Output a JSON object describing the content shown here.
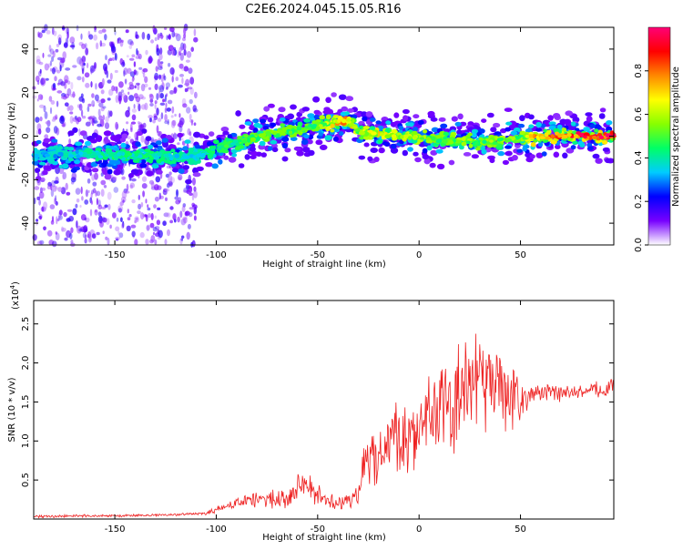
{
  "title": "C2E6.2024.045.15.05.R16",
  "chart_data": [
    {
      "type": "heatmap",
      "title": "C2E6.2024.045.15.05.R16",
      "xlabel": "Height of straight line (km)",
      "ylabel": "Frequency (Hz)",
      "xlim": [
        -190,
        96
      ],
      "ylim": [
        -50,
        50
      ],
      "xticks": [
        -150,
        -100,
        -50,
        0,
        50
      ],
      "yticks": [
        -40,
        -20,
        0,
        20,
        40
      ],
      "colorbar": {
        "label": "Normalized spectral amplitude",
        "range": [
          0,
          1
        ],
        "ticks": [
          "0.0",
          "0.2",
          "0.4",
          "0.6",
          "0.8"
        ],
        "colors": [
          "#ffffff",
          "#7700ff",
          "#0000ff",
          "#00ccff",
          "#00ff66",
          "#88ff00",
          "#ffff00",
          "#ff8800",
          "#ff0000",
          "#ff0077"
        ]
      },
      "ridge": {
        "x": [
          -190,
          -170,
          -150,
          -130,
          -110,
          -100,
          -90,
          -80,
          -70,
          -60,
          -50,
          -40,
          -35,
          -30,
          -20,
          -10,
          0,
          10,
          20,
          30,
          40,
          50,
          60,
          70,
          80,
          96
        ],
        "y": [
          -9,
          -8,
          -9,
          -9,
          -10,
          -6,
          -3,
          0,
          1,
          3,
          5,
          6,
          7,
          2,
          1,
          0,
          0,
          -2,
          -2,
          -3,
          -2,
          -1,
          0,
          0,
          0,
          0
        ],
        "peak_amplitude": [
          0.35,
          0.4,
          0.45,
          0.45,
          0.4,
          0.45,
          0.5,
          0.55,
          0.55,
          0.55,
          0.55,
          0.75,
          0.8,
          0.6,
          0.7,
          0.65,
          0.6,
          0.55,
          0.6,
          0.55,
          0.6,
          0.55,
          0.85,
          0.9,
          0.95,
          1.0
        ]
      }
    },
    {
      "type": "line",
      "xlabel": "Height of straight line (km)",
      "ylabel": "SNR (10 * v/v)",
      "scale_label_base": "(x10",
      "scale_label_exp": "4",
      "scale_label_end": ")",
      "xlim": [
        -190,
        96
      ],
      "ylim": [
        0,
        2.8
      ],
      "xticks": [
        -150,
        -100,
        -50,
        0,
        50
      ],
      "yticks": [
        0.5,
        1.0,
        1.5,
        2.0,
        2.5
      ],
      "ytick_labels": [
        "0.5",
        "1.0",
        "1.5",
        "2.0",
        "2.5"
      ],
      "color": "#ee2222",
      "x": [
        -190,
        -170,
        -150,
        -130,
        -115,
        -105,
        -100,
        -95,
        -90,
        -85,
        -80,
        -75,
        -70,
        -65,
        -60,
        -56,
        -52,
        -48,
        -45,
        -40,
        -35,
        -30,
        -28,
        -25,
        -22,
        -20,
        -15,
        -10,
        -5,
        0,
        5,
        10,
        15,
        20,
        25,
        28,
        32,
        36,
        40,
        45,
        50,
        55,
        60,
        65,
        70,
        75,
        80,
        85,
        90,
        96
      ],
      "y": [
        0.03,
        0.04,
        0.04,
        0.05,
        0.06,
        0.07,
        0.12,
        0.16,
        0.2,
        0.23,
        0.25,
        0.24,
        0.27,
        0.3,
        0.38,
        0.5,
        0.35,
        0.28,
        0.25,
        0.2,
        0.22,
        0.3,
        0.6,
        0.75,
        0.9,
        0.85,
        0.95,
        1.05,
        1.1,
        1.2,
        1.3,
        1.45,
        1.4,
        1.5,
        1.7,
        1.9,
        1.8,
        1.7,
        1.6,
        1.6,
        1.55,
        1.6,
        1.62,
        1.62,
        1.6,
        1.62,
        1.62,
        1.65,
        1.67,
        1.7
      ],
      "noise": [
        0.02,
        0.02,
        0.02,
        0.02,
        0.02,
        0.03,
        0.05,
        0.07,
        0.08,
        0.1,
        0.12,
        0.12,
        0.14,
        0.16,
        0.2,
        0.22,
        0.18,
        0.14,
        0.12,
        0.1,
        0.12,
        0.2,
        0.3,
        0.45,
        0.55,
        0.5,
        0.55,
        0.6,
        0.6,
        0.65,
        0.65,
        0.7,
        0.7,
        0.8,
        0.9,
        0.95,
        0.9,
        0.8,
        0.7,
        0.5,
        0.35,
        0.15,
        0.12,
        0.12,
        0.12,
        0.12,
        0.12,
        0.12,
        0.12,
        0.15
      ]
    }
  ]
}
